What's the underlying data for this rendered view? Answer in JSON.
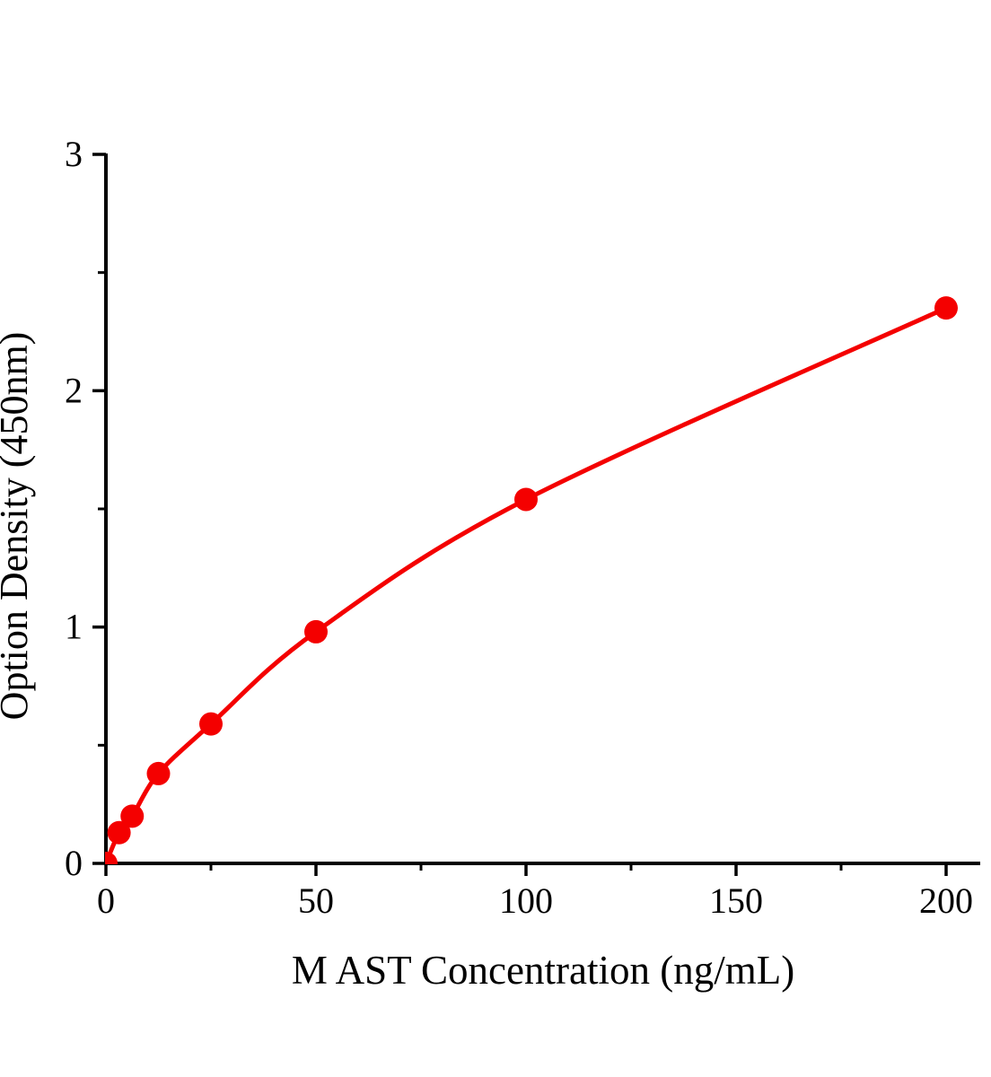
{
  "chart_data": {
    "type": "line",
    "xlabel": "M AST Concentration (ng/mL)",
    "ylabel": "Option Density (450nm)",
    "x": [
      0,
      3.125,
      6.25,
      12.5,
      25,
      50,
      100,
      200
    ],
    "y": [
      0,
      0.13,
      0.2,
      0.38,
      0.59,
      0.98,
      1.54,
      2.35
    ],
    "xlim": [
      0,
      208
    ],
    "ylim": [
      0,
      3
    ],
    "xticks": [
      0,
      50,
      100,
      150,
      200
    ],
    "xticks_minor": [
      25,
      75,
      125,
      175
    ],
    "yticks": [
      0,
      1,
      2,
      3
    ],
    "yticks_minor": [
      0.5,
      1.5,
      2.5
    ],
    "grid": false,
    "legend": false,
    "line_color": "#f40000",
    "marker": "circle",
    "marker_color": "#f40000",
    "axis_color": "#000000",
    "background_color": "#ffffff"
  }
}
